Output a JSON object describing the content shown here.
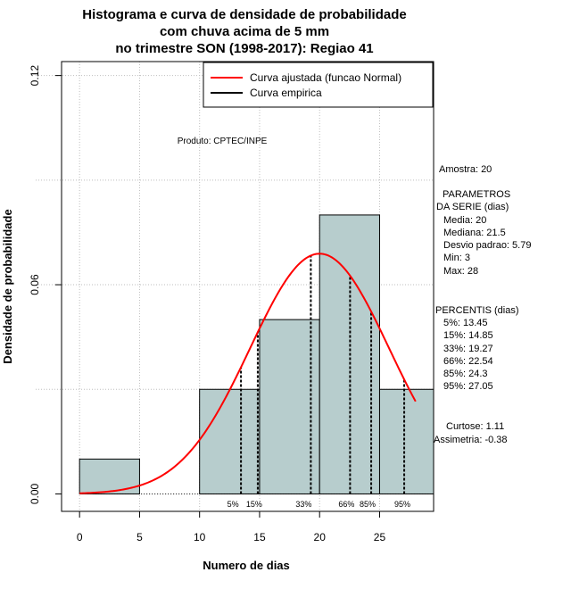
{
  "chart_data": {
    "type": "bar",
    "title_lines": [
      "Histograma e curva de densidade de probabilidade",
      "com chuva acima de 5 mm",
      "no trimestre SON (1998-2017): Regiao 41"
    ],
    "xlabel": "Numero de dias",
    "ylabel": "Densidade de probabilidade",
    "xlim": [
      -1.5,
      29.5
    ],
    "ylim": [
      -0.005,
      0.124
    ],
    "x_ticks": [
      0,
      5,
      10,
      15,
      20,
      25
    ],
    "x_tick_labels": [
      "0",
      "5",
      "10",
      "15",
      "20",
      "25"
    ],
    "y_ticks": [
      0,
      0.06,
      0.12
    ],
    "y_tick_labels": [
      "0.00",
      "0.06",
      "0.12"
    ],
    "grid": true,
    "grid_color": "#bebebe",
    "bar_fill": "#b7cdcd",
    "bar_edge": "#000000",
    "bins": [
      {
        "from": 0,
        "to": 5,
        "density": 0.01
      },
      {
        "from": 5,
        "to": 10,
        "density": 0.0
      },
      {
        "from": 10,
        "to": 15,
        "density": 0.03
      },
      {
        "from": 15,
        "to": 20,
        "density": 0.05
      },
      {
        "from": 20,
        "to": 25,
        "density": 0.08
      },
      {
        "from": 25,
        "to": 30,
        "density": 0.03
      }
    ],
    "curve": {
      "name": "Curva ajustada (funcao Normal)",
      "color": "#ff0000",
      "mean": 20,
      "sd": 5.79,
      "x_from": 0,
      "x_to": 28
    },
    "empirical_legend": {
      "name": "Curva empirica",
      "color": "#000000"
    },
    "legend_position": "top-right",
    "percentiles": [
      {
        "x": 13.45,
        "label": "5%"
      },
      {
        "x": 14.85,
        "label": "15%"
      },
      {
        "x": 19.27,
        "label": "33%"
      },
      {
        "x": 22.54,
        "label": "66%"
      },
      {
        "x": 24.3,
        "label": "85%"
      },
      {
        "x": 27.05,
        "label": "95%"
      }
    ],
    "product_note": "Produto: CPTEC/INPE"
  },
  "side_panel": {
    "sample": "Amostra: 20",
    "params_title_1": "PARAMETROS",
    "params_title_2": "DA SERIE (dias)",
    "media": "Media: 20",
    "mediana": "Mediana: 21.5",
    "desvio": "Desvio padrao: 5.79",
    "min": "Min: 3",
    "max": "Max: 28",
    "percentis_title": "PERCENTIS (dias)",
    "p5": "5%: 13.45",
    "p15": "15%: 14.85",
    "p33": "33%: 19.27",
    "p66": "66%: 22.54",
    "p85": "85%: 24.3",
    "p95": "95%: 27.05",
    "curtose": "Curtose: 1.11",
    "assimetria": "Assimetria: -0.38"
  }
}
